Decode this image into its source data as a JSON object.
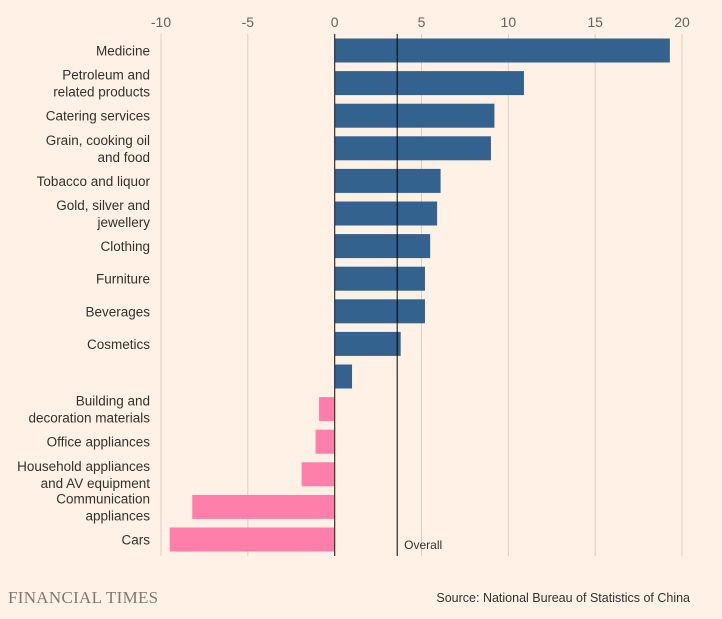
{
  "chart_data": {
    "type": "bar",
    "orientation": "horizontal",
    "title": "",
    "xlabel": "",
    "ylabel": "",
    "xlim": [
      -10,
      20
    ],
    "x_ticks": [
      "-10",
      "-5",
      "0",
      "5",
      "10",
      "15",
      "20"
    ],
    "grid": true,
    "categories": [
      "Medicine",
      "Petroleum and related products",
      "Catering services",
      "Grain, cooking oil and food",
      "Tobacco and liquor",
      "Gold, silver and jewellery",
      "Clothing",
      "Furniture",
      "Beverages",
      "Cosmetics",
      "",
      "Building and decoration materials",
      "Office appliances",
      "Household appliances and AV equipment",
      "Communication appliances",
      "Cars"
    ],
    "values": [
      19.3,
      10.9,
      9.2,
      9.0,
      6.1,
      5.9,
      5.5,
      5.2,
      5.2,
      3.8,
      1.0,
      -0.9,
      -1.1,
      -1.9,
      -8.2,
      -9.5
    ],
    "reference_line": {
      "value": 3.6,
      "label": "Overall"
    },
    "colors": {
      "positive": "#33628f",
      "negative": "#ff7faa",
      "background": "#fff1e5",
      "gridline": "#d9cdc4",
      "zero_line": "#33302e"
    }
  },
  "footer": {
    "brand": "FINANCIAL TIMES",
    "source": "Source: National Bureau of Statistics of China"
  }
}
